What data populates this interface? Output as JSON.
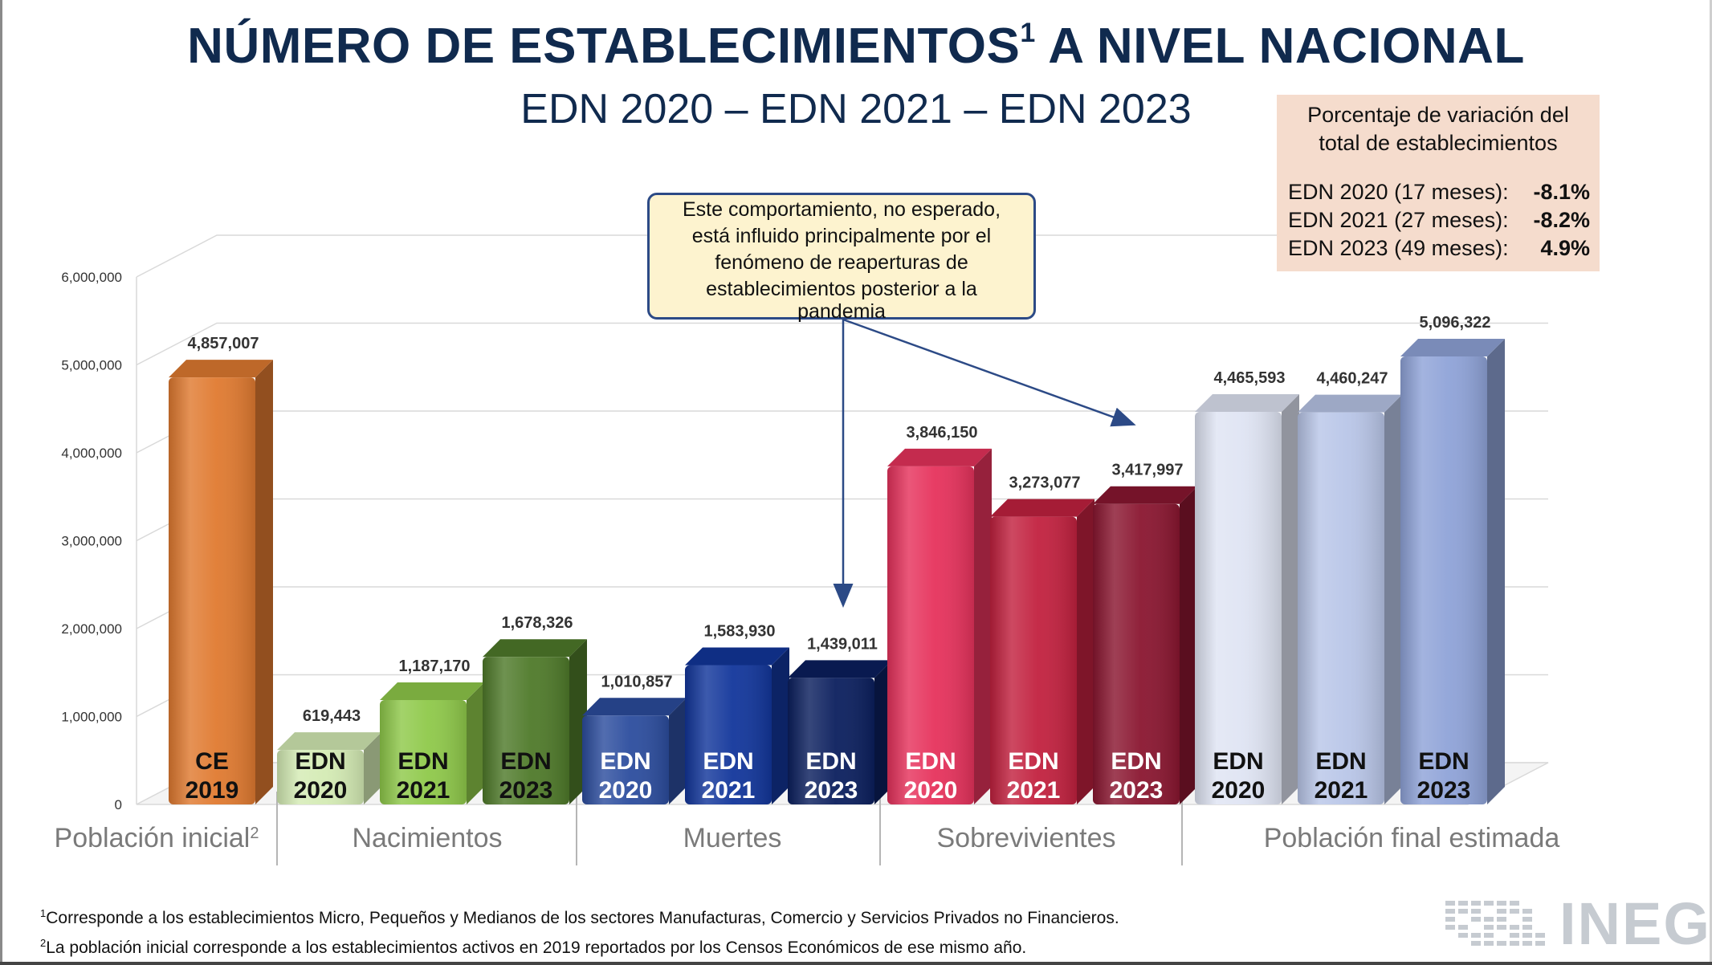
{
  "header": {
    "title": "NÚMERO DE ESTABLECIMIENTOS",
    "title_sup": "1",
    "title_tail": " A NIVEL NACIONAL",
    "subtitle": "EDN 2020 – EDN 2021 – EDN 2023"
  },
  "variation_box": {
    "heading_line1": "Porcentaje de variación del",
    "heading_line2": "total de establecimientos",
    "rows": [
      {
        "label": "EDN 2020 (17 meses):",
        "value": "-8.1%"
      },
      {
        "label": "EDN 2021 (27 meses):",
        "value": "-8.2%"
      },
      {
        "label": "EDN 2023 (49 meses):",
        "value": "4.9%"
      }
    ]
  },
  "callout": {
    "line1": "Este comportamiento, no esperado,",
    "line2": "está influido principalmente por el",
    "line3": "fenómeno de reaperturas de",
    "line4": "establecimientos posterior a la",
    "line5": "pandemia"
  },
  "footnotes": {
    "note1_mark": "1",
    "note1": "Corresponde a los establecimientos Micro, Pequeños y Medianos de los sectores Manufacturas, Comercio y Servicios Privados no Financieros.",
    "note2_mark": "2",
    "note2": "La población inicial corresponde a los establecimientos activos en 2019 reportados por los Censos Económicos de ese mismo año."
  },
  "logo": {
    "text": "INEGI",
    "icon": "inegi-dot-grid-icon"
  },
  "chart_data": {
    "type": "bar",
    "ylim": [
      0,
      6000000
    ],
    "yticks": [
      "0",
      "1,000,000",
      "2,000,000",
      "3,000,000",
      "4,000,000",
      "5,000,000",
      "6,000,000"
    ],
    "ytick_values": [
      0,
      1000000,
      2000000,
      3000000,
      4000000,
      5000000,
      6000000
    ],
    "grid": true,
    "groups": [
      {
        "label": "Población inicial",
        "sup": "2",
        "bars": [
          {
            "line1": "CE",
            "line2": "2019",
            "value": 4857007,
            "label": "4,857,007",
            "color": "#e07a30",
            "text_color": "#111111"
          }
        ]
      },
      {
        "label": "Nacimientos",
        "bars": [
          {
            "line1": "EDN",
            "line2": "2020",
            "value": 619443,
            "label": "619,443",
            "color": "#d4ebb4",
            "text_color": "#111111"
          },
          {
            "line1": "EDN",
            "line2": "2021",
            "value": 1187170,
            "label": "1,187,170",
            "color": "#8fc94a",
            "text_color": "#111111"
          },
          {
            "line1": "EDN",
            "line2": "2023",
            "value": 1678326,
            "label": "1,678,326",
            "color": "#4f7a2a",
            "text_color": "#111111"
          }
        ]
      },
      {
        "label": "Muertes",
        "bars": [
          {
            "line1": "EDN",
            "line2": "2020",
            "value": 1010857,
            "label": "1,010,857",
            "color": "#2c4d9e",
            "text_color": "#ffffff"
          },
          {
            "line1": "EDN",
            "line2": "2021",
            "value": 1583930,
            "label": "1,583,930",
            "color": "#12369b",
            "text_color": "#ffffff"
          },
          {
            "line1": "EDN",
            "line2": "2023",
            "value": 1439011,
            "label": "1,439,011",
            "color": "#0b1f5e",
            "text_color": "#ffffff"
          }
        ]
      },
      {
        "label": "Sobrevivientes",
        "bars": [
          {
            "line1": "EDN",
            "line2": "2020",
            "value": 3846150,
            "label": "3,846,150",
            "color": "#e6325c",
            "text_color": "#ffffff"
          },
          {
            "line1": "EDN",
            "line2": "2021",
            "value": 3273077,
            "label": "3,273,077",
            "color": "#c2213f",
            "text_color": "#ffffff"
          },
          {
            "line1": "EDN",
            "line2": "2023",
            "value": 3417997,
            "label": "3,417,997",
            "color": "#8a1630",
            "text_color": "#ffffff"
          }
        ]
      },
      {
        "label": "Población final estimada",
        "bars": [
          {
            "line1": "EDN",
            "line2": "2020",
            "value": 4465593,
            "label": "4,465,593",
            "color": "#dfe4f3",
            "text_color": "#111111"
          },
          {
            "line1": "EDN",
            "line2": "2021",
            "value": 4460247,
            "label": "4,460,247",
            "color": "#b9c6e8",
            "text_color": "#111111"
          },
          {
            "line1": "EDN",
            "line2": "2023",
            "value": 5096322,
            "label": "5,096,322",
            "color": "#8fa3d8",
            "text_color": "#111111"
          }
        ]
      }
    ]
  }
}
